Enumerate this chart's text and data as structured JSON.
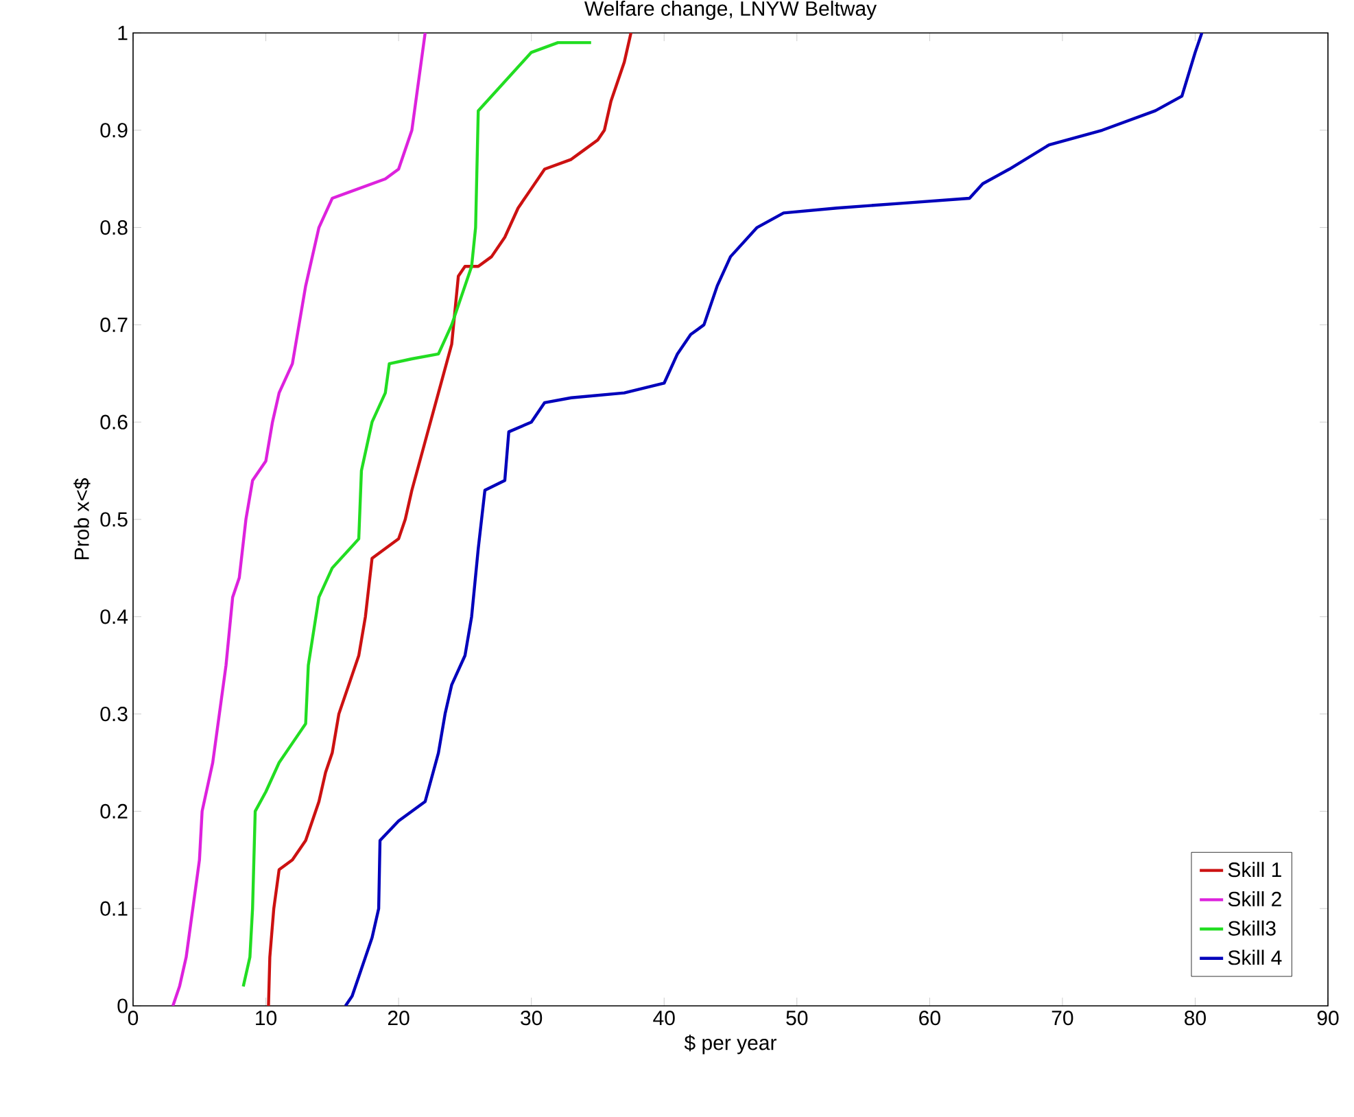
{
  "chart_data": {
    "type": "line",
    "title": "Welfare change, LNYW Beltway",
    "xlabel": "$ per year",
    "ylabel": "Prob x<$",
    "xlim": [
      0,
      90
    ],
    "xticks": [
      0,
      10,
      20,
      30,
      40,
      50,
      60,
      70,
      80,
      90
    ],
    "ylim": [
      0,
      1
    ],
    "yticks": [
      0,
      0.1,
      0.2,
      0.3,
      0.4,
      0.5,
      0.6,
      0.7,
      0.8,
      0.9,
      1
    ],
    "legend": "bottom right",
    "series": [
      {
        "name": "Skill 1",
        "color": "#cc1111",
        "x": [
          10.2,
          10.3,
          10.6,
          11,
          12,
          13,
          14,
          14.5,
          15,
          15.5,
          16.5,
          17,
          17.5,
          18,
          19,
          20,
          20.5,
          21,
          22,
          23,
          24,
          24.5,
          25,
          26,
          27,
          28,
          29,
          30,
          31,
          33,
          34,
          35,
          35.5,
          36,
          37,
          37.5
        ],
        "values": [
          0,
          0.05,
          0.1,
          0.14,
          0.15,
          0.17,
          0.21,
          0.24,
          0.26,
          0.3,
          0.34,
          0.36,
          0.4,
          0.46,
          0.47,
          0.48,
          0.5,
          0.53,
          0.58,
          0.63,
          0.68,
          0.75,
          0.76,
          0.76,
          0.77,
          0.79,
          0.82,
          0.84,
          0.86,
          0.87,
          0.88,
          0.89,
          0.9,
          0.93,
          0.97,
          1
        ]
      },
      {
        "name": "Skill 2",
        "color": "#dd22dd",
        "x": [
          3,
          3.5,
          4,
          4.5,
          5,
          5.2,
          6,
          6.5,
          7,
          7.5,
          8,
          8.5,
          9,
          10,
          10.5,
          11,
          12,
          12.5,
          13,
          14,
          15,
          17,
          19,
          20,
          21,
          21.5,
          22
        ],
        "values": [
          0,
          0.02,
          0.05,
          0.1,
          0.15,
          0.2,
          0.25,
          0.3,
          0.35,
          0.42,
          0.44,
          0.5,
          0.54,
          0.56,
          0.6,
          0.63,
          0.66,
          0.7,
          0.74,
          0.8,
          0.83,
          0.84,
          0.85,
          0.86,
          0.9,
          0.95,
          1
        ]
      },
      {
        "name": "Skill3",
        "color": "#22dd22",
        "x": [
          8.3,
          8.8,
          9,
          9.2,
          10,
          11,
          12,
          13,
          13.2,
          14,
          15,
          17,
          17.2,
          18,
          19,
          19.3,
          21,
          23,
          24,
          25.5,
          25.8,
          26,
          28,
          30,
          32,
          34.5
        ],
        "values": [
          0.02,
          0.05,
          0.1,
          0.2,
          0.22,
          0.25,
          0.27,
          0.29,
          0.35,
          0.42,
          0.45,
          0.48,
          0.55,
          0.6,
          0.63,
          0.66,
          0.665,
          0.67,
          0.7,
          0.76,
          0.8,
          0.92,
          0.95,
          0.98,
          0.99,
          0.99
        ]
      },
      {
        "name": "Skill 4",
        "color": "#0000bb",
        "x": [
          16,
          16.5,
          17,
          17.5,
          18,
          18.5,
          18.6,
          20,
          22,
          23,
          23.5,
          24,
          25,
          25.5,
          26,
          26.5,
          28,
          28.3,
          30,
          31,
          33,
          37,
          40,
          41,
          42,
          43,
          44,
          45,
          47,
          49,
          53,
          58,
          63,
          64,
          66,
          69,
          73,
          77,
          79,
          80,
          80.5
        ],
        "values": [
          0,
          0.01,
          0.03,
          0.05,
          0.07,
          0.1,
          0.17,
          0.19,
          0.21,
          0.26,
          0.3,
          0.33,
          0.36,
          0.4,
          0.47,
          0.53,
          0.54,
          0.59,
          0.6,
          0.62,
          0.625,
          0.63,
          0.64,
          0.67,
          0.69,
          0.7,
          0.74,
          0.77,
          0.8,
          0.815,
          0.82,
          0.825,
          0.83,
          0.845,
          0.86,
          0.885,
          0.9,
          0.92,
          0.935,
          0.98,
          1
        ]
      }
    ]
  }
}
